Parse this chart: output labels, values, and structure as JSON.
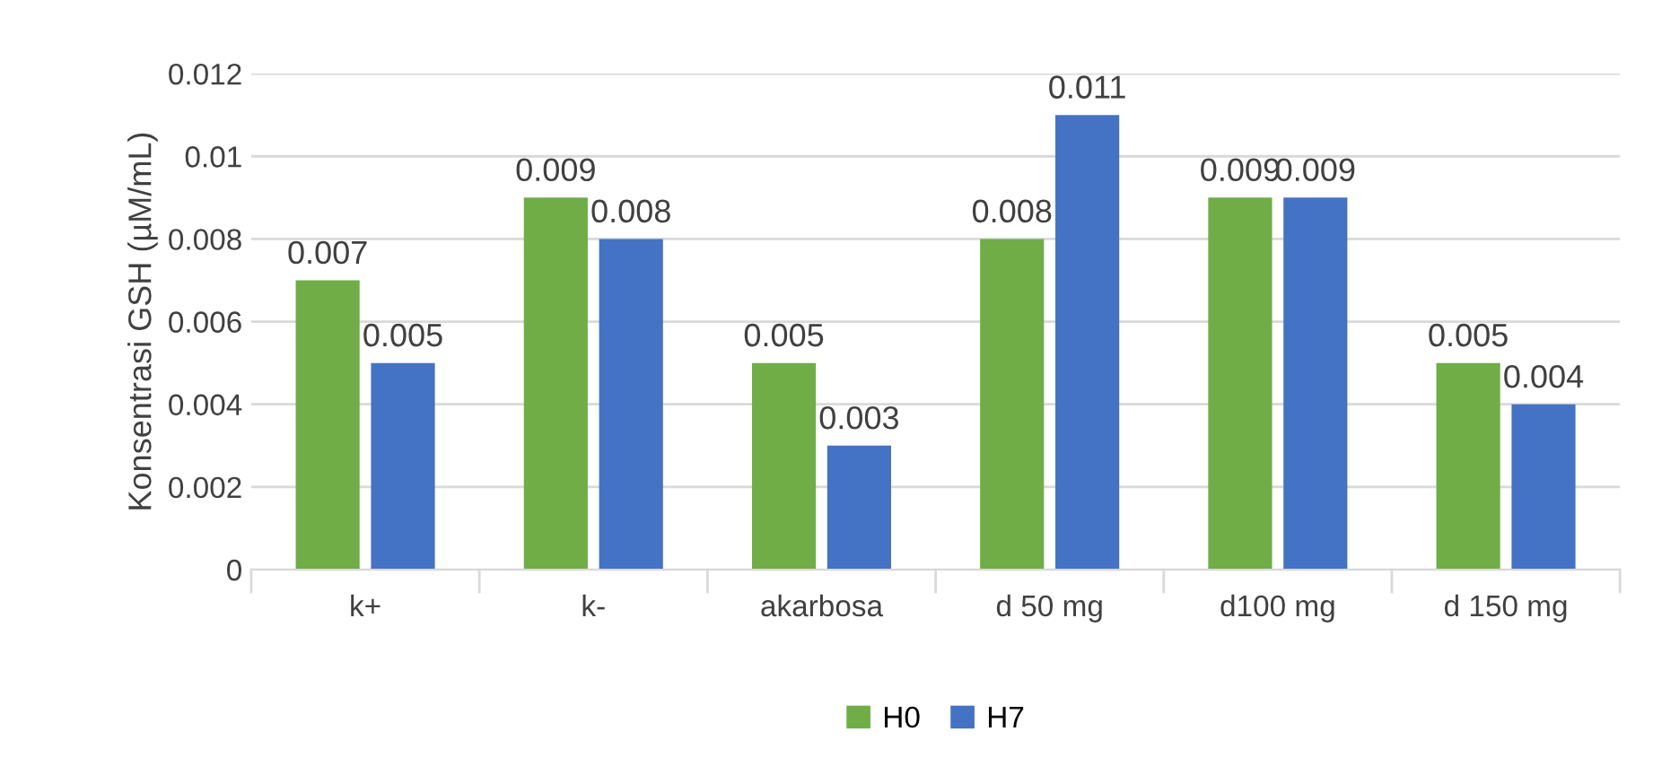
{
  "chart_data": {
    "type": "bar",
    "ylabel": "Konsentrasi GSH (µM/mL)",
    "categories": [
      "k+",
      "k-",
      "akarbosa",
      "d 50 mg",
      "d100 mg",
      "d 150 mg"
    ],
    "series": [
      {
        "name": "H0",
        "color": "#70ad47",
        "values": [
          0.007,
          0.009,
          0.005,
          0.008,
          0.009,
          0.005
        ]
      },
      {
        "name": "H7",
        "color": "#4472c4",
        "values": [
          0.005,
          0.008,
          0.003,
          0.011,
          0.009,
          0.004
        ]
      }
    ],
    "ylim": [
      0,
      0.012
    ],
    "yticks": [
      0,
      0.002,
      0.004,
      0.006,
      0.008,
      0.01,
      0.012
    ],
    "grid": "y",
    "legend": "bottom",
    "data_labels": true
  }
}
